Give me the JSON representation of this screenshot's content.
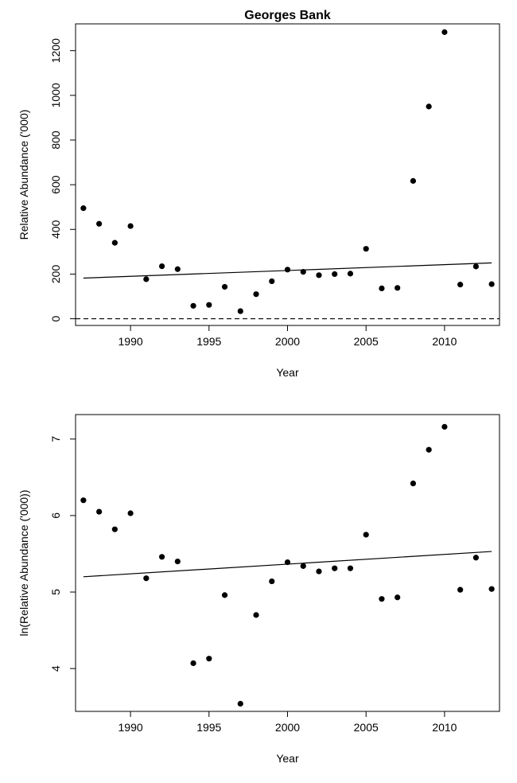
{
  "chart_data": [
    {
      "type": "scatter",
      "title": "Georges Bank",
      "xlabel": "Year",
      "ylabel": "Relative Abundance ('000)",
      "xlim": [
        1986.5,
        2013.5
      ],
      "ylim": [
        -30,
        1320
      ],
      "x_ticks": [
        1990,
        1995,
        2000,
        2005,
        2010
      ],
      "x_tick_labels": [
        "1990",
        "1995",
        "2000",
        "2005",
        "2010"
      ],
      "y_ticks": [
        0,
        200,
        400,
        600,
        800,
        1000,
        1200
      ],
      "y_tick_labels": [
        "0",
        "200",
        "400",
        "600",
        "800",
        "1000",
        "1200"
      ],
      "x": [
        1987,
        1988,
        1989,
        1990,
        1991,
        1992,
        1993,
        1994,
        1995,
        1996,
        1997,
        1998,
        1999,
        2000,
        2001,
        2002,
        2003,
        2004,
        2005,
        2006,
        2007,
        2008,
        2009,
        2010,
        2011,
        2012,
        2013
      ],
      "y": [
        495,
        425,
        340,
        415,
        177,
        235,
        222,
        58,
        62,
        143,
        34,
        110,
        168,
        220,
        210,
        195,
        200,
        202,
        313,
        136,
        138,
        617,
        950,
        1283,
        153,
        234,
        155
      ],
      "trend_line": {
        "x": [
          1987,
          2013
        ],
        "y": [
          182,
          250
        ]
      },
      "reference_line": {
        "y": 0,
        "style": "dashed"
      }
    },
    {
      "type": "scatter",
      "title": "",
      "xlabel": "Year",
      "ylabel": "ln(Relative Abundance ('000))",
      "xlim": [
        1986.5,
        2013.5
      ],
      "ylim": [
        3.44,
        7.32
      ],
      "x_ticks": [
        1990,
        1995,
        2000,
        2005,
        2010
      ],
      "x_tick_labels": [
        "1990",
        "1995",
        "2000",
        "2005",
        "2010"
      ],
      "y_ticks": [
        4,
        5,
        6,
        7
      ],
      "y_tick_labels": [
        "4",
        "5",
        "6",
        "7"
      ],
      "x": [
        1987,
        1988,
        1989,
        1990,
        1991,
        1992,
        1993,
        1994,
        1995,
        1996,
        1997,
        1998,
        1999,
        2000,
        2001,
        2002,
        2003,
        2004,
        2005,
        2006,
        2007,
        2008,
        2009,
        2010,
        2011,
        2012,
        2013
      ],
      "y": [
        6.2,
        6.05,
        5.82,
        6.03,
        5.18,
        5.46,
        5.4,
        4.07,
        4.13,
        4.96,
        3.54,
        4.7,
        5.14,
        5.39,
        5.34,
        5.27,
        5.31,
        5.31,
        5.75,
        4.91,
        4.93,
        6.42,
        6.86,
        7.16,
        5.03,
        5.45,
        5.04
      ],
      "trend_line": {
        "x": [
          1987,
          2013
        ],
        "y": [
          5.2,
          5.53
        ]
      }
    }
  ]
}
